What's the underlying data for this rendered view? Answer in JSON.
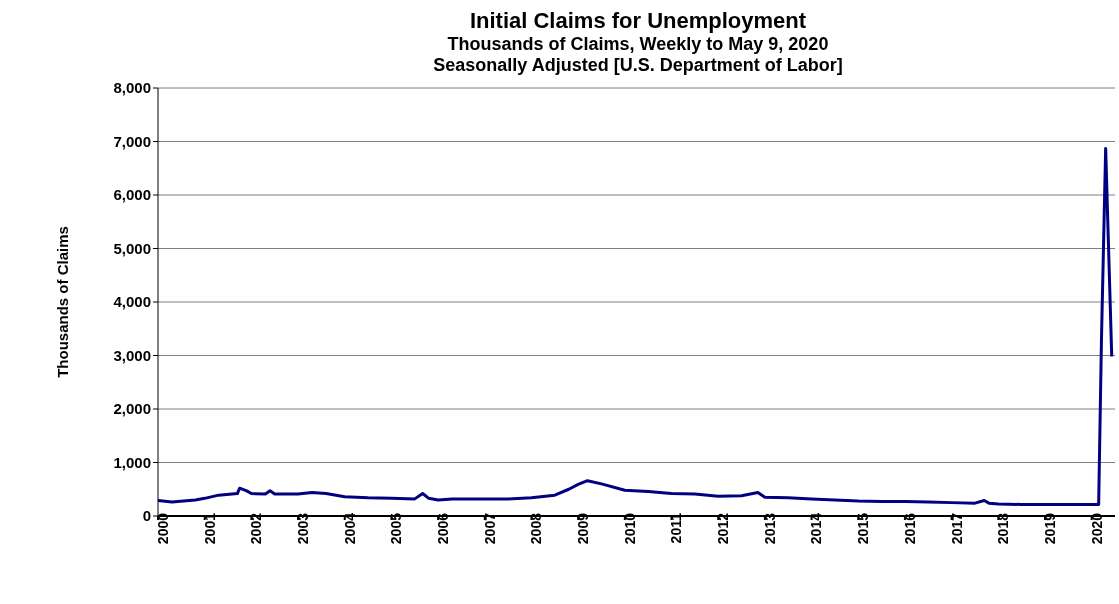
{
  "chart_data": {
    "type": "line",
    "title": "Initial Claims for Unemployment",
    "subtitle": "Thousands of Claims, Weekly to May 9, 2020\nSeasonally Adjusted [U.S. Department of Labor]",
    "ylabel": "Thousands of Claims",
    "x": [
      2000,
      2000.3,
      2000.8,
      2001,
      2001.3,
      2001.7,
      2001.75,
      2001.9,
      2002,
      2002.3,
      2002.4,
      2002.5,
      2003,
      2003.3,
      2003.6,
      2004,
      2004.5,
      2005,
      2005.5,
      2005.67,
      2005.8,
      2006,
      2006.3,
      2007,
      2007.5,
      2008,
      2008.5,
      2008.8,
      2009,
      2009.2,
      2009.5,
      2010,
      2010.5,
      2011,
      2011.5,
      2012,
      2012.5,
      2012.85,
      2013,
      2013.5,
      2014,
      2014.5,
      2015,
      2015.5,
      2016,
      2016.5,
      2017,
      2017.5,
      2017.7,
      2017.8,
      2018,
      2018.5,
      2019,
      2019.5,
      2020.15,
      2020.21,
      2020.3,
      2020.43
    ],
    "series": [
      {
        "color": "#000080",
        "values": [
          290,
          260,
          300,
          330,
          390,
          420,
          520,
          470,
          420,
          410,
          470,
          410,
          410,
          440,
          420,
          360,
          340,
          330,
          320,
          420,
          330,
          300,
          320,
          320,
          320,
          340,
          390,
          500,
          590,
          660,
          600,
          480,
          460,
          420,
          410,
          370,
          380,
          440,
          350,
          340,
          320,
          300,
          280,
          270,
          270,
          260,
          250,
          240,
          290,
          240,
          225,
          215,
          215,
          215,
          215,
          3300,
          6870,
          2980
        ]
      }
    ],
    "xlim": [
      2000,
      2020.5
    ],
    "xticks": [
      2000,
      2001,
      2002,
      2003,
      2004,
      2005,
      2006,
      2007,
      2008,
      2009,
      2010,
      2011,
      2012,
      2013,
      2014,
      2015,
      2016,
      2017,
      2018,
      2019,
      2020
    ],
    "ylim": [
      0,
      8000
    ],
    "yticks": [
      {
        "value": 0,
        "label": "0"
      },
      {
        "value": 1000,
        "label": "1,000"
      },
      {
        "value": 2000,
        "label": "2,000"
      },
      {
        "value": 3000,
        "label": "3,000"
      },
      {
        "value": 4000,
        "label": "4,000"
      },
      {
        "value": 5000,
        "label": "5,000"
      },
      {
        "value": 6000,
        "label": "6,000"
      },
      {
        "value": 7000,
        "label": "7,000"
      },
      {
        "value": 8000,
        "label": "8,000"
      }
    ],
    "grid": "y",
    "legend": false,
    "marker": "none",
    "line_style": "solid"
  }
}
